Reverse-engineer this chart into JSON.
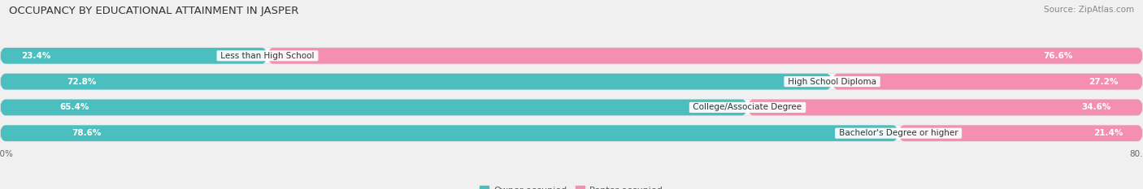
{
  "title": "OCCUPANCY BY EDUCATIONAL ATTAINMENT IN JASPER",
  "source": "Source: ZipAtlas.com",
  "categories": [
    "Less than High School",
    "High School Diploma",
    "College/Associate Degree",
    "Bachelor's Degree or higher"
  ],
  "owner_pct": [
    23.4,
    72.8,
    65.4,
    78.6
  ],
  "renter_pct": [
    76.6,
    27.2,
    34.6,
    21.4
  ],
  "owner_color": "#4BBFBF",
  "renter_color": "#F48FB1",
  "bar_height": 0.62,
  "total": 100,
  "title_fontsize": 9.5,
  "source_fontsize": 7.5,
  "label_fontsize": 7.5,
  "pct_fontsize": 7.5,
  "tick_fontsize": 7.5,
  "legend_fontsize": 8,
  "background_color": "#f0f0f0",
  "bar_background": "#e8e8e8",
  "row_background": "#f8f8f8"
}
